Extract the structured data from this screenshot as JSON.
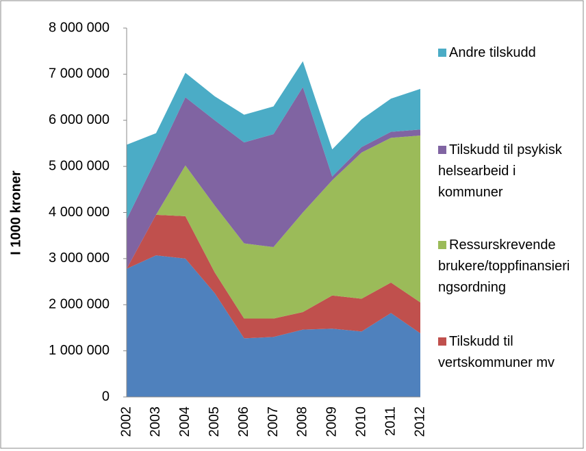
{
  "chart_data": {
    "type": "stacked-area",
    "y_label": "I 1000 kroner",
    "categories": [
      "2002",
      "2003",
      "2004",
      "2005",
      "2006",
      "2007",
      "2008",
      "2009",
      "2010",
      "2011",
      "2012"
    ],
    "series": [
      {
        "color": "#4f81bd",
        "values": [
          2780000,
          3070000,
          3000000,
          2250000,
          1270000,
          1300000,
          1460000,
          1480000,
          1420000,
          1820000,
          1380000
        ]
      },
      {
        "name": "Tilskudd til vertskommuner mv",
        "color": "#c0504d",
        "values": [
          0,
          880000,
          920000,
          450000,
          430000,
          400000,
          380000,
          720000,
          710000,
          660000,
          670000
        ]
      },
      {
        "name": "Ressurskrevende brukere/toppfinansieringsordning",
        "color": "#9bbb59",
        "values": [
          0,
          0,
          1100000,
          1450000,
          1630000,
          1550000,
          2160000,
          2500000,
          3170000,
          3140000,
          3620000
        ]
      },
      {
        "name": "Tilskudd til psykisk helsearbeid i kommuner",
        "color": "#8064a2",
        "values": [
          1070000,
          1200000,
          1480000,
          1850000,
          2190000,
          2450000,
          2720000,
          80000,
          120000,
          130000,
          130000
        ]
      },
      {
        "name": "Andre tilskudd",
        "color": "#4bacc6",
        "values": [
          1620000,
          570000,
          530000,
          520000,
          600000,
          600000,
          560000,
          590000,
          600000,
          720000,
          880000
        ]
      }
    ],
    "ylim": [
      0,
      8000000
    ],
    "yticks": [
      0,
      {
        "value": 1000000,
        "label": "1 000 000"
      },
      {
        "value": 2000000,
        "label": "2 000 000"
      },
      {
        "value": 3000000,
        "label": "3 000 000"
      },
      {
        "value": 4000000,
        "label": "4 000 000"
      },
      {
        "value": 5000000,
        "label": "5 000 000"
      },
      {
        "value": 6000000,
        "label": "6 000 000"
      },
      {
        "value": 7000000,
        "label": "7 000 000"
      },
      {
        "value": 8000000,
        "label": "8 000 000"
      }
    ],
    "grid": false,
    "legend": "right"
  }
}
